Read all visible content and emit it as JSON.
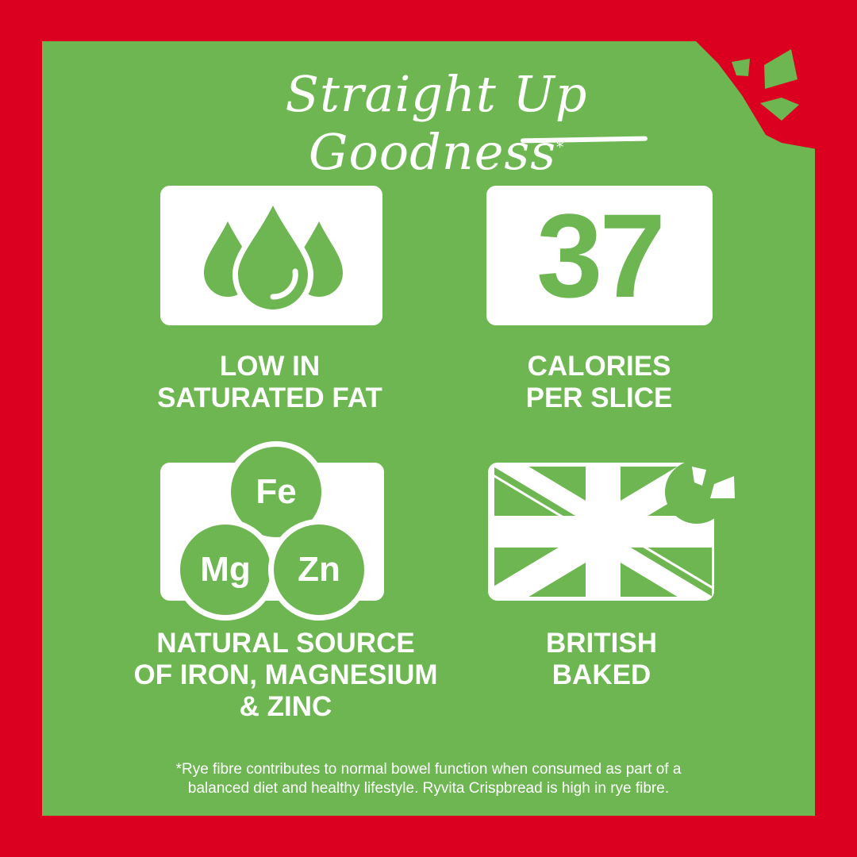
{
  "title": "Straight Up Goodness",
  "title_mark": "*",
  "colors": {
    "background_red": "#db0020",
    "panel_green": "#6db652",
    "white": "#ffffff"
  },
  "features": [
    {
      "icon": "water-drops-icon",
      "label_line1": "LOW IN",
      "label_line2": "SATURATED FAT"
    },
    {
      "value": "37",
      "label_line1": "CALORIES",
      "label_line2": "PER SLICE"
    },
    {
      "icon": "minerals-icon",
      "elements": [
        "Fe",
        "Mg",
        "Zn"
      ],
      "label_line1": "NATURAL SOURCE",
      "label_line2": "OF IRON, MAGNESIUM",
      "label_line3": "& ZINC"
    },
    {
      "icon": "union-jack-icon",
      "label_line1": "BRITISH",
      "label_line2": "BAKED"
    }
  ],
  "footnote_line1": "*Rye fibre contributes to normal bowel function when consumed as part of a",
  "footnote_line2": "balanced diet and healthy lifestyle. Ryvita Crispbread is high in rye fibre."
}
